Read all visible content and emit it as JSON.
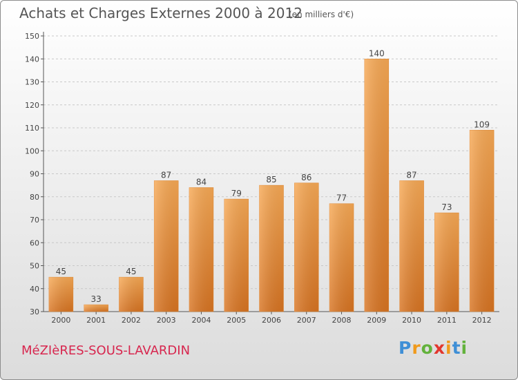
{
  "chart_data": {
    "type": "bar",
    "title": "Achats et Charges Externes 2000 à 2012",
    "subtitle": "(en milliers d'€)",
    "categories": [
      "2000",
      "2001",
      "2002",
      "2003",
      "2004",
      "2005",
      "2006",
      "2007",
      "2008",
      "2009",
      "2010",
      "2011",
      "2012"
    ],
    "values": [
      45,
      33,
      45,
      87,
      84,
      79,
      85,
      86,
      77,
      140,
      87,
      73,
      109
    ],
    "ylim": [
      30,
      150
    ],
    "yticks": [
      30,
      40,
      50,
      60,
      70,
      80,
      90,
      100,
      110,
      120,
      130,
      140,
      150
    ],
    "grid": true,
    "bar_color": "#f0923a"
  },
  "footer": {
    "town": "MéZIèRES-SOUS-LAVARDIN",
    "brand_letters": [
      "P",
      "r",
      "o",
      "x",
      "i",
      "t",
      "i"
    ],
    "brand_colors": [
      "#3f8fd6",
      "#f09a1c",
      "#63b23c",
      "#e2372e",
      "#f09a1c",
      "#3f8fd6",
      "#63b23c"
    ]
  }
}
